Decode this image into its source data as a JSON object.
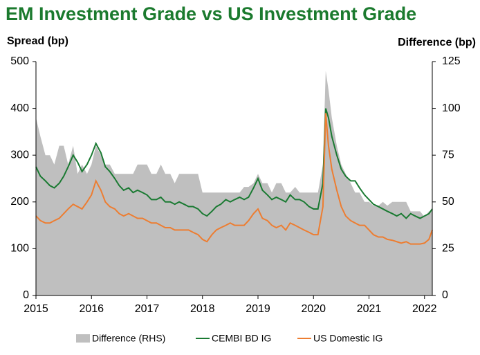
{
  "chart_data": {
    "type": "line",
    "title": "EM Investment Grade vs US Investment Grade",
    "y_label": "Spread (bp)",
    "y2_label": "Difference (bp)",
    "xlim": [
      2015,
      2022.14
    ],
    "xticks": [
      2015,
      2016,
      2017,
      2018,
      2019,
      2020,
      2021,
      2022
    ],
    "ylim": [
      0,
      500
    ],
    "yticks": [
      0,
      100,
      200,
      300,
      400,
      500
    ],
    "y2lim": [
      0,
      125
    ],
    "y2ticks": [
      0,
      25,
      50,
      75,
      100,
      125
    ],
    "x": [
      2015.0,
      2015.08,
      2015.17,
      2015.25,
      2015.33,
      2015.42,
      2015.5,
      2015.58,
      2015.67,
      2015.75,
      2015.83,
      2015.92,
      2016.0,
      2016.08,
      2016.17,
      2016.25,
      2016.33,
      2016.42,
      2016.5,
      2016.58,
      2016.67,
      2016.75,
      2016.83,
      2016.92,
      2017.0,
      2017.08,
      2017.17,
      2017.25,
      2017.33,
      2017.42,
      2017.5,
      2017.58,
      2017.67,
      2017.75,
      2017.83,
      2017.92,
      2018.0,
      2018.08,
      2018.17,
      2018.25,
      2018.33,
      2018.42,
      2018.5,
      2018.58,
      2018.67,
      2018.75,
      2018.83,
      2018.92,
      2019.0,
      2019.08,
      2019.17,
      2019.25,
      2019.33,
      2019.42,
      2019.5,
      2019.58,
      2019.67,
      2019.75,
      2019.83,
      2019.92,
      2020.0,
      2020.08,
      2020.17,
      2020.22,
      2020.27,
      2020.33,
      2020.42,
      2020.5,
      2020.58,
      2020.67,
      2020.75,
      2020.83,
      2020.92,
      2021.0,
      2021.08,
      2021.17,
      2021.25,
      2021.33,
      2021.42,
      2021.5,
      2021.58,
      2021.67,
      2021.75,
      2021.83,
      2021.92,
      2022.0,
      2022.08,
      2022.14
    ],
    "series": [
      {
        "name": "Difference (RHS)",
        "color": "#bfbfbf",
        "axis": "y2",
        "style": "area",
        "values": [
          95,
          85,
          75,
          75,
          70,
          80,
          80,
          70,
          80,
          65,
          70,
          65,
          70,
          80,
          75,
          70,
          70,
          65,
          65,
          65,
          65,
          65,
          70,
          70,
          70,
          65,
          65,
          70,
          65,
          65,
          60,
          65,
          65,
          65,
          65,
          65,
          55,
          55,
          55,
          55,
          55,
          55,
          55,
          55,
          55,
          58,
          58,
          60,
          65,
          60,
          60,
          55,
          60,
          60,
          55,
          55,
          58,
          55,
          55,
          55,
          55,
          55,
          70,
          120,
          110,
          95,
          80,
          70,
          65,
          60,
          55,
          55,
          50,
          50,
          48,
          48,
          50,
          48,
          50,
          50,
          50,
          50,
          45,
          45,
          45,
          42,
          45,
          45
        ]
      },
      {
        "name": "CEMBI BD IG",
        "color": "#1a7a32",
        "values": [
          275,
          255,
          245,
          235,
          230,
          240,
          255,
          275,
          300,
          285,
          265,
          280,
          300,
          325,
          305,
          275,
          265,
          250,
          235,
          225,
          230,
          220,
          225,
          220,
          215,
          205,
          205,
          210,
          200,
          200,
          195,
          200,
          195,
          190,
          190,
          185,
          175,
          170,
          180,
          190,
          195,
          205,
          200,
          205,
          210,
          205,
          210,
          230,
          250,
          225,
          215,
          205,
          210,
          205,
          200,
          215,
          205,
          205,
          200,
          190,
          185,
          185,
          240,
          400,
          380,
          340,
          300,
          270,
          255,
          245,
          245,
          230,
          215,
          205,
          195,
          190,
          185,
          180,
          175,
          170,
          175,
          165,
          175,
          170,
          165,
          170,
          175,
          185
        ]
      },
      {
        "name": "US Domestic IG",
        "color": "#ed7d31",
        "values": [
          170,
          160,
          155,
          155,
          160,
          165,
          175,
          185,
          195,
          190,
          185,
          200,
          215,
          245,
          225,
          200,
          190,
          185,
          175,
          170,
          175,
          170,
          165,
          165,
          160,
          155,
          155,
          150,
          145,
          145,
          140,
          140,
          140,
          140,
          135,
          130,
          120,
          115,
          130,
          140,
          145,
          150,
          155,
          150,
          150,
          150,
          160,
          175,
          185,
          165,
          160,
          150,
          145,
          150,
          140,
          155,
          150,
          145,
          140,
          135,
          130,
          130,
          190,
          390,
          320,
          270,
          225,
          190,
          170,
          160,
          155,
          150,
          150,
          140,
          130,
          125,
          125,
          120,
          118,
          115,
          112,
          115,
          110,
          110,
          110,
          112,
          120,
          140
        ]
      }
    ]
  }
}
